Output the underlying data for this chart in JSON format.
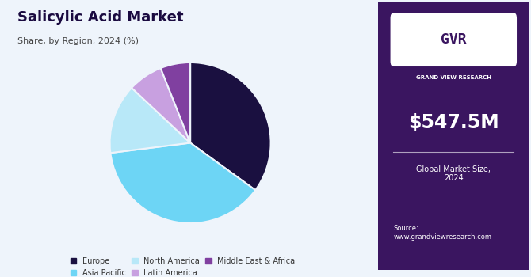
{
  "title": "Salicylic Acid Market",
  "subtitle": "Share, by Region, 2024 (%)",
  "labels": [
    "Europe",
    "Asia Pacific",
    "North America",
    "Latin America",
    "Middle East & Africa"
  ],
  "values": [
    35,
    38,
    14,
    7,
    6
  ],
  "colors": [
    "#1a1040",
    "#6dd5f5",
    "#b8e8f8",
    "#c8a0e0",
    "#8040a0"
  ],
  "startangle": 90,
  "bg_color": "#eef4fb",
  "right_bg_color": "#3a1560",
  "market_size": "$547.5M",
  "market_label": "Global Market Size,\n2024",
  "source_text": "Source:\nwww.grandviewresearch.com",
  "title_color": "#1a0a40",
  "subtitle_color": "#444444",
  "gvr_text": "GRAND VIEW RESEARCH"
}
